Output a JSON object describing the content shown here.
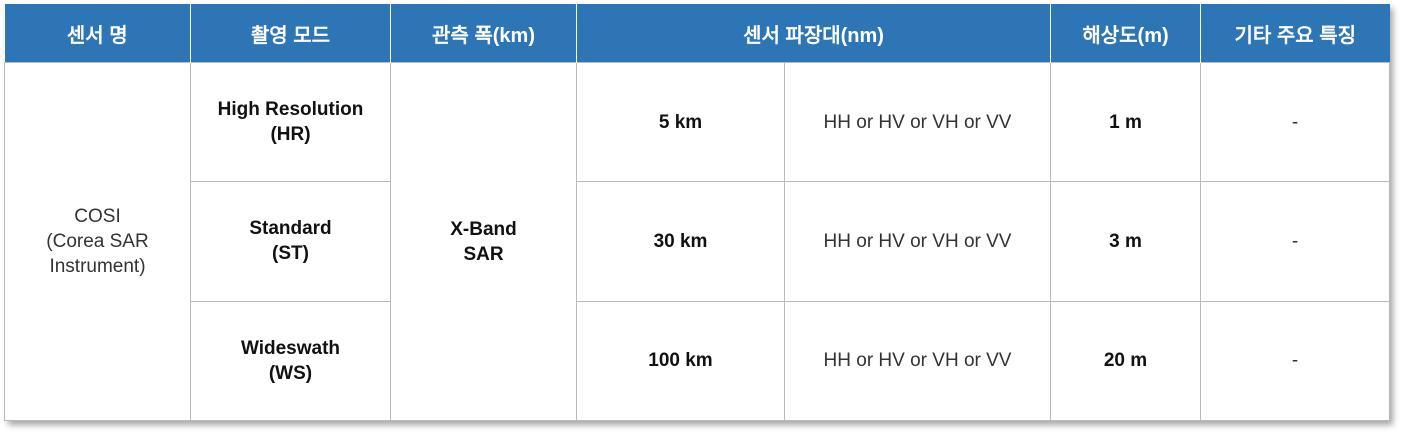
{
  "headers": [
    "센서 명",
    "촬영 모드",
    "관측 폭(km)",
    "센서 파장대(nm)",
    "해상도(m)",
    "기타 주요 특징"
  ],
  "sensor": {
    "line1": "COSI",
    "line2": "(Corea SAR",
    "line3": "Instrument)"
  },
  "band": {
    "line1": "X-Band",
    "line2": "SAR"
  },
  "rows": [
    {
      "mode_line1": "High Resolution",
      "mode_line2": "(HR)",
      "swath": "5 km",
      "polarization": "HH or HV or VH or VV",
      "resolution": "1 m",
      "notes": "-"
    },
    {
      "mode_line1": "Standard",
      "mode_line2": "(ST)",
      "swath": "30 km",
      "polarization": "HH or HV or VH or VV",
      "resolution": "3 m",
      "notes": "-"
    },
    {
      "mode_line1": "Wideswath",
      "mode_line2": "(WS)",
      "swath": "100 km",
      "polarization": "HH or HV or VH or VV",
      "resolution": "20 m",
      "notes": "-"
    }
  ]
}
